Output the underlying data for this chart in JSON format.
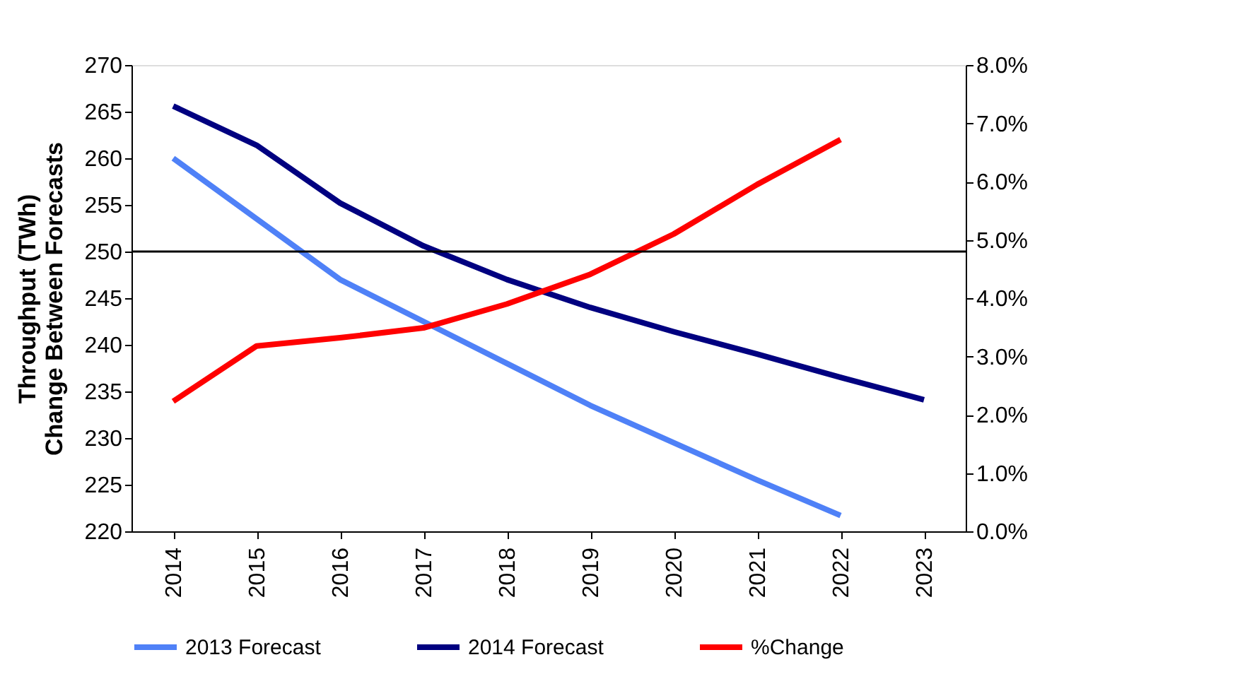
{
  "chart_data": {
    "type": "line",
    "ylabel": "Throughput (TWh)\nChange Between Forecasts",
    "categories": [
      "2014",
      "2015",
      "2016",
      "2017",
      "2018",
      "2019",
      "2020",
      "2021",
      "2022",
      "2023"
    ],
    "series": [
      {
        "name": "2013 Forecast",
        "color": "#4f81f7",
        "values": [
          260.0,
          253.5,
          247.0,
          242.5,
          238.0,
          233.5,
          229.5,
          225.5,
          221.7,
          null
        ]
      },
      {
        "name": "2014 Forecast",
        "color": "#000080",
        "values": [
          265.6,
          261.4,
          255.2,
          250.6,
          247.0,
          244.0,
          241.4,
          239.0,
          236.5,
          234.1
        ]
      },
      {
        "name": "%Change",
        "color": "#ff0000",
        "axis": "y2",
        "values": [
          2.23,
          3.18,
          3.32,
          3.49,
          3.9,
          4.41,
          5.1,
          5.95,
          6.72,
          null
        ]
      }
    ],
    "ylim": [
      220,
      270
    ],
    "yticks": [
      220,
      225,
      230,
      235,
      240,
      245,
      250,
      255,
      260,
      265,
      270
    ],
    "y2lim": [
      0,
      8
    ],
    "y2ticks": [
      {
        "value": 0,
        "label": "0.0%"
      },
      {
        "value": 1,
        "label": "1.0%"
      },
      {
        "value": 2,
        "label": "2.0%"
      },
      {
        "value": 3,
        "label": "3.0%"
      },
      {
        "value": 4,
        "label": "4.0%"
      },
      {
        "value": 5,
        "label": "5.0%"
      },
      {
        "value": 6,
        "label": "6.0%"
      },
      {
        "value": 7,
        "label": "7.0%"
      },
      {
        "value": 8,
        "label": "8.0%"
      }
    ],
    "ref_lines": [
      {
        "axis": "y",
        "value": 250,
        "color": "#000000"
      }
    ],
    "grid": false,
    "legend": "bottom",
    "marker": "none",
    "line_style": "solid"
  }
}
